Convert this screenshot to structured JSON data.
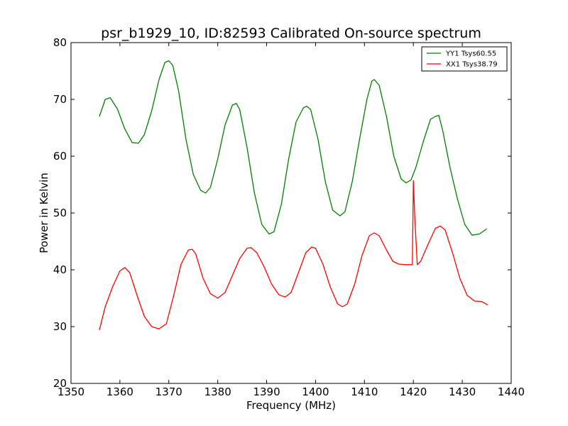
{
  "chart_data": {
    "type": "line",
    "title": "psr_b1929_10, ID:82593 Calibrated On-source spectrum",
    "xlabel": "Frequency (MHz)",
    "ylabel": "Power in Kelvin",
    "xlim": [
      1350,
      1440
    ],
    "ylim": [
      20,
      80
    ],
    "xticks": [
      1350,
      1360,
      1370,
      1380,
      1390,
      1400,
      1410,
      1420,
      1430,
      1440
    ],
    "yticks": [
      20,
      30,
      40,
      50,
      60,
      70,
      80
    ],
    "grid": false,
    "legend_position": "top-right",
    "series": [
      {
        "name": "YY1 Tsys60.55",
        "color": "#008000",
        "x": [
          1355.8,
          1357.0,
          1358.0,
          1359.5,
          1361.0,
          1362.5,
          1363.8,
          1365.0,
          1366.5,
          1368.0,
          1369.2,
          1370.0,
          1370.8,
          1372.0,
          1373.5,
          1375.0,
          1376.5,
          1377.5,
          1378.5,
          1380.0,
          1381.5,
          1383.0,
          1383.8,
          1384.5,
          1386.0,
          1387.5,
          1389.0,
          1390.5,
          1391.5,
          1393.0,
          1394.5,
          1396.0,
          1397.5,
          1398.2,
          1399.0,
          1400.5,
          1402.0,
          1403.5,
          1405.0,
          1406.0,
          1407.5,
          1409.0,
          1410.5,
          1411.5,
          1412.0,
          1413.0,
          1414.5,
          1416.0,
          1417.5,
          1418.5,
          1419.5,
          1420.5,
          1422.0,
          1423.5,
          1424.5,
          1425.2,
          1426.0,
          1427.5,
          1429.0,
          1430.5,
          1432.0,
          1433.5,
          1435.0
        ],
        "values": [
          67.0,
          70.0,
          70.3,
          68.3,
          64.8,
          62.4,
          62.3,
          63.8,
          68.0,
          73.5,
          76.5,
          76.8,
          76.0,
          71.5,
          63.0,
          56.8,
          54.0,
          53.5,
          54.5,
          59.5,
          65.5,
          69.0,
          69.3,
          68.2,
          61.5,
          53.5,
          48.0,
          46.3,
          46.7,
          51.5,
          59.5,
          66.0,
          68.5,
          68.8,
          68.2,
          63.0,
          55.5,
          50.5,
          49.5,
          50.2,
          55.5,
          63.0,
          70.0,
          73.2,
          73.5,
          72.5,
          67.0,
          60.0,
          56.0,
          55.3,
          55.8,
          58.0,
          62.5,
          66.5,
          67.0,
          67.2,
          64.5,
          58.0,
          52.5,
          48.0,
          46.1,
          46.3,
          47.2
        ]
      },
      {
        "name": "XX1 Tsys38.79",
        "color": "#ff0000",
        "x": [
          1355.8,
          1357.0,
          1358.5,
          1360.0,
          1361.0,
          1362.0,
          1363.5,
          1365.0,
          1366.5,
          1368.0,
          1369.5,
          1371.0,
          1372.5,
          1374.0,
          1374.8,
          1375.5,
          1377.0,
          1378.5,
          1380.0,
          1381.5,
          1383.0,
          1384.5,
          1386.0,
          1386.8,
          1388.0,
          1389.5,
          1391.0,
          1392.5,
          1393.8,
          1395.0,
          1396.5,
          1398.0,
          1399.2,
          1400.0,
          1401.5,
          1403.0,
          1404.5,
          1405.5,
          1406.5,
          1408.0,
          1409.5,
          1411.0,
          1412.0,
          1413.0,
          1414.5,
          1415.8,
          1417.0,
          1418.5,
          1419.8,
          1420.0,
          1420.3,
          1420.8,
          1421.5,
          1423.0,
          1424.5,
          1425.5,
          1426.5,
          1428.0,
          1429.5,
          1431.0,
          1432.5,
          1434.0,
          1435.2
        ],
        "values": [
          29.4,
          33.5,
          37.0,
          39.8,
          40.4,
          39.5,
          35.5,
          31.8,
          30.0,
          29.6,
          30.5,
          35.5,
          41.0,
          43.5,
          43.6,
          42.8,
          38.5,
          35.8,
          35.0,
          36.0,
          39.0,
          42.0,
          43.8,
          43.9,
          43.0,
          40.5,
          37.5,
          35.6,
          35.2,
          36.0,
          39.5,
          43.0,
          44.0,
          43.8,
          41.0,
          37.0,
          34.0,
          33.5,
          34.0,
          37.5,
          42.5,
          46.0,
          46.5,
          46.0,
          43.5,
          41.5,
          41.0,
          40.9,
          40.9,
          55.7,
          49.0,
          40.9,
          41.5,
          44.5,
          47.3,
          47.7,
          47.0,
          43.0,
          38.5,
          35.5,
          34.5,
          34.4,
          33.8
        ]
      }
    ]
  }
}
